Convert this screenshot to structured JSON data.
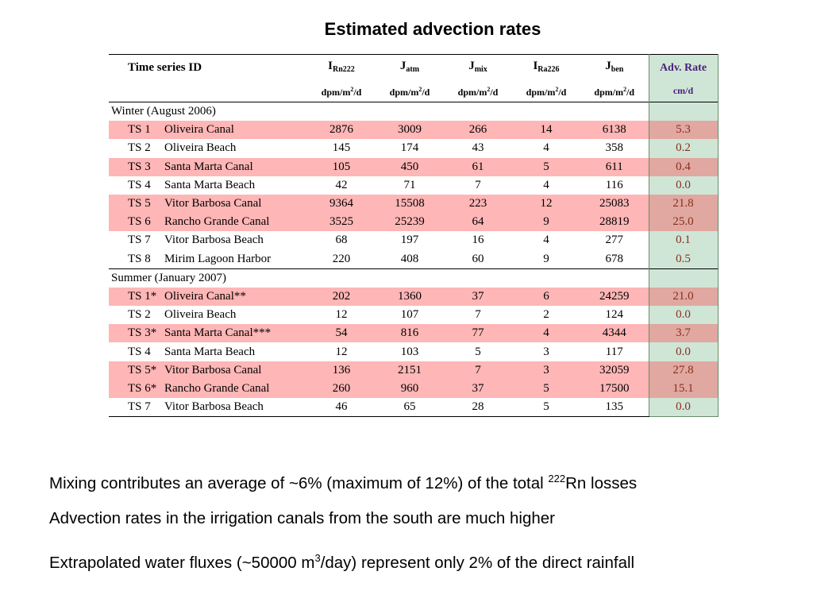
{
  "title": "Estimated advection rates",
  "table": {
    "columns": [
      {
        "label": "Time series ID",
        "sub": "",
        "unit": ""
      },
      {
        "label": "I",
        "sub": "Rn222",
        "unit": "dpm/m2/d"
      },
      {
        "label": "J",
        "sub": "atm",
        "unit": "dpm/m2/d"
      },
      {
        "label": "J",
        "sub": "mix",
        "unit": "dpm/m2/d"
      },
      {
        "label": "I",
        "sub": "Ra226",
        "unit": "dpm/m2/d"
      },
      {
        "label": "J",
        "sub": "ben",
        "unit": "dpm/m2/d"
      },
      {
        "label": "Adv. Rate",
        "sub": "",
        "unit": "cm/d"
      }
    ],
    "unit_main": "dpm/m",
    "unit_sup": "2",
    "unit_tail": "/d",
    "winter_label": "Winter (August 2006)",
    "summer_label": "Summer (January 2007)",
    "winter": [
      {
        "code": "TS 1",
        "name": "Oliveira Canal",
        "vals": [
          "2876",
          "3009",
          "266",
          "14",
          "6138"
        ],
        "adv": "5.3",
        "hl": true
      },
      {
        "code": "TS 2",
        "name": "Oliveira Beach",
        "vals": [
          "145",
          "174",
          "43",
          "4",
          "358"
        ],
        "adv": "0.2",
        "hl": false
      },
      {
        "code": "TS 3",
        "name": "Santa Marta Canal",
        "vals": [
          "105",
          "450",
          "61",
          "5",
          "611"
        ],
        "adv": "0.4",
        "hl": true
      },
      {
        "code": "TS 4",
        "name": "Santa Marta Beach",
        "vals": [
          "42",
          "71",
          "7",
          "4",
          "116"
        ],
        "adv": "0.0",
        "hl": false
      },
      {
        "code": "TS 5",
        "name": "Vitor Barbosa Canal",
        "vals": [
          "9364",
          "15508",
          "223",
          "12",
          "25083"
        ],
        "adv": "21.8",
        "hl": true
      },
      {
        "code": "TS 6",
        "name": "Rancho Grande Canal",
        "vals": [
          "3525",
          "25239",
          "64",
          "9",
          "28819"
        ],
        "adv": "25.0",
        "hl": true
      },
      {
        "code": "TS 7",
        "name": "Vitor Barbosa Beach",
        "vals": [
          "68",
          "197",
          "16",
          "4",
          "277"
        ],
        "adv": "0.1",
        "hl": false
      },
      {
        "code": "TS 8",
        "name": "Mirim Lagoon Harbor",
        "vals": [
          "220",
          "408",
          "60",
          "9",
          "678"
        ],
        "adv": "0.5",
        "hl": false
      }
    ],
    "summer": [
      {
        "code": "TS 1*",
        "name": "Oliveira Canal**",
        "vals": [
          "202",
          "1360",
          "37",
          "6",
          "24259"
        ],
        "adv": "21.0",
        "hl": true
      },
      {
        "code": "TS 2",
        "name": "Oliveira Beach",
        "vals": [
          "12",
          "107",
          "7",
          "2",
          "124"
        ],
        "adv": "0.0",
        "hl": false
      },
      {
        "code": "TS 3*",
        "name": "Santa Marta Canal***",
        "vals": [
          "54",
          "816",
          "77",
          "4",
          "4344"
        ],
        "adv": "3.7",
        "hl": true
      },
      {
        "code": "TS 4",
        "name": "Santa Marta Beach",
        "vals": [
          "12",
          "103",
          "5",
          "3",
          "117"
        ],
        "adv": "0.0",
        "hl": false
      },
      {
        "code": "TS 5*",
        "name": "Vitor Barbosa Canal",
        "vals": [
          "136",
          "2151",
          "7",
          "3",
          "32059"
        ],
        "adv": "27.8",
        "hl": true
      },
      {
        "code": "TS 6*",
        "name": "Rancho Grande Canal",
        "vals": [
          "260",
          "960",
          "37",
          "5",
          "17500"
        ],
        "adv": "15.1",
        "hl": true
      },
      {
        "code": "TS 7",
        "name": "Vitor Barbosa Beach",
        "vals": [
          "46",
          "65",
          "28",
          "5",
          "135"
        ],
        "adv": "0.0",
        "hl": false
      }
    ]
  },
  "bullets": {
    "b1_pre": "Mixing contributes an average of ~6% (maximum of 12%) of the total ",
    "b1_sup": "222",
    "b1_post": "Rn losses",
    "b2": "Advection rates in the irrigation canals from the south are much higher",
    "b3_pre": "Extrapolated water fluxes (~50000 m",
    "b3_sup": "3",
    "b3_post": "/day) represent only 2% of the direct rainfall"
  },
  "colors": {
    "highlight_row": "#ffb6b6",
    "highlight_adv": "#e0a8a0",
    "adv_column": "#cfe6d6",
    "adv_header_text": "#4b1f7a",
    "adv_value_text": "#8a2d20"
  }
}
